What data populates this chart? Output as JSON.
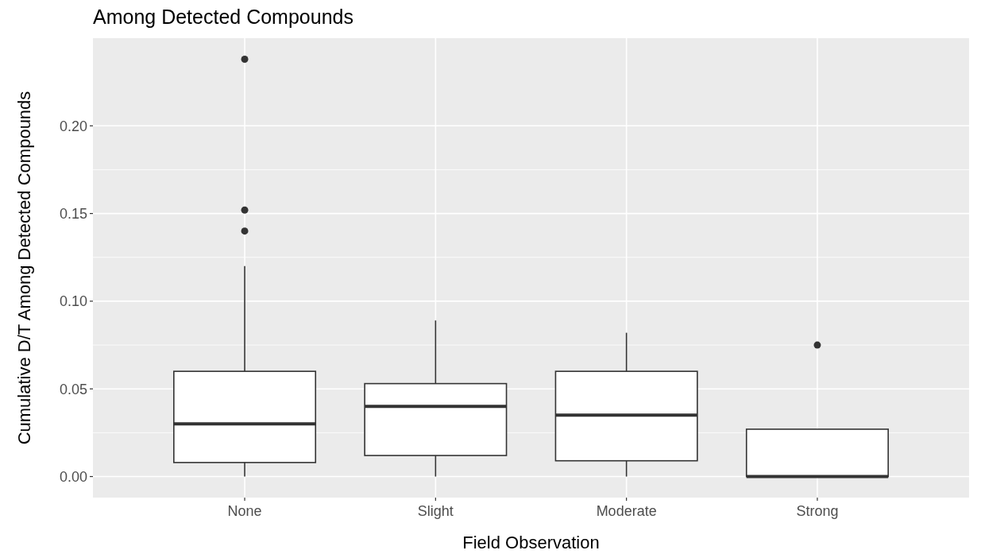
{
  "chart_data": {
    "type": "box",
    "title": "Among Detected Compounds",
    "xlabel": "Field Observation",
    "ylabel": "Cumulative D/T Among Detected Compounds",
    "categories": [
      "None",
      "Slight",
      "Moderate",
      "Strong"
    ],
    "boxes": [
      {
        "low": 0,
        "q1": 0.008,
        "median": 0.03,
        "q3": 0.06,
        "high": 0.12,
        "outliers": [
          0.238,
          0.152,
          0.14
        ]
      },
      {
        "low": 0,
        "q1": 0.012,
        "median": 0.04,
        "q3": 0.053,
        "high": 0.089
      },
      {
        "low": 0,
        "q1": 0.009,
        "median": 0.035,
        "q3": 0.06,
        "high": 0.082
      },
      {
        "low": 0,
        "q1": 0,
        "median": 0,
        "q3": 0.027,
        "high": 0.027,
        "outliers": [
          0.075
        ]
      }
    ],
    "ylim": [
      -0.012,
      0.25
    ],
    "yticks": [
      {
        "value": 0,
        "label": "0.00"
      },
      {
        "value": 0.05,
        "label": "0.05"
      },
      {
        "value": 0.1,
        "label": "0.10"
      },
      {
        "value": 0.15,
        "label": "0.15"
      },
      {
        "value": 0.2,
        "label": "0.20"
      }
    ],
    "grid": true
  }
}
